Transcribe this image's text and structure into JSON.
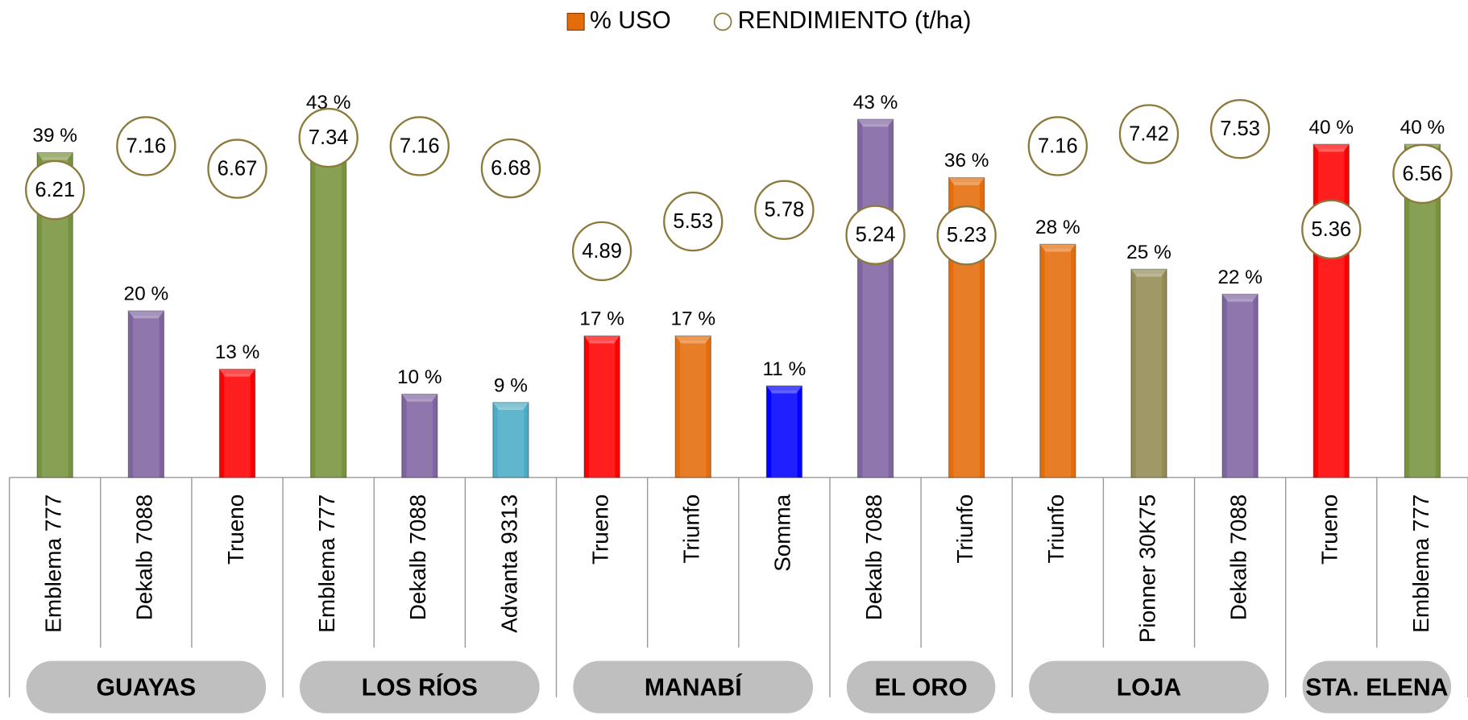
{
  "chart_data": {
    "type": "bar",
    "categories": [
      "Emblema 777",
      "Dekalb 7088",
      "Trueno",
      "Emblema 777",
      "Dekalb 7088",
      "Advanta 9313",
      "Trueno",
      "Triunfo",
      "Somma",
      "Dekalb 7088",
      "Triunfo",
      "Triunfo",
      "Pionner 30K75",
      "Dekalb 7088",
      "Trueno",
      "Emblema 777"
    ],
    "groups": [
      {
        "name": "GUAYAS",
        "count": 3
      },
      {
        "name": "LOS RÍOS",
        "count": 3
      },
      {
        "name": "MANABÍ",
        "count": 3
      },
      {
        "name": "EL ORO",
        "count": 2
      },
      {
        "name": "LOJA",
        "count": 3
      },
      {
        "name": "STA. ELENA",
        "count": 2
      }
    ],
    "series": [
      {
        "name": "% USO",
        "color": "#e46c0a",
        "colors": [
          "#77933c",
          "#8064a2",
          "#ff0000",
          "#77933c",
          "#8064a2",
          "#4bacc6",
          "#ff0000",
          "#e46c0a",
          "#0000ff",
          "#8064a2",
          "#e46c0a",
          "#e46c0a",
          "#948a54",
          "#8064a2",
          "#ff0000",
          "#77933c"
        ],
        "values": [
          39,
          20,
          13,
          43,
          10,
          9,
          17,
          17,
          11,
          43,
          36,
          28,
          25,
          22,
          40,
          40
        ],
        "value_labels": [
          "39 %",
          "20 %",
          "13 %",
          "43 %",
          "10 %",
          "9 %",
          "17 %",
          "17 %",
          "11 %",
          "43 %",
          "36 %",
          "28 %",
          "25 %",
          "22 %",
          "40 %",
          "40 %"
        ]
      },
      {
        "name": "RENDIMIENTO (t/ha)",
        "color": "#8c7a3c",
        "axis": "y2",
        "values": [
          6.21,
          7.16,
          6.67,
          7.34,
          7.16,
          6.68,
          4.89,
          5.53,
          5.78,
          5.24,
          5.23,
          7.16,
          7.42,
          7.53,
          5.36,
          6.56
        ]
      }
    ],
    "ylim": [
      0,
      50
    ],
    "y2lim": [
      0,
      9
    ]
  }
}
